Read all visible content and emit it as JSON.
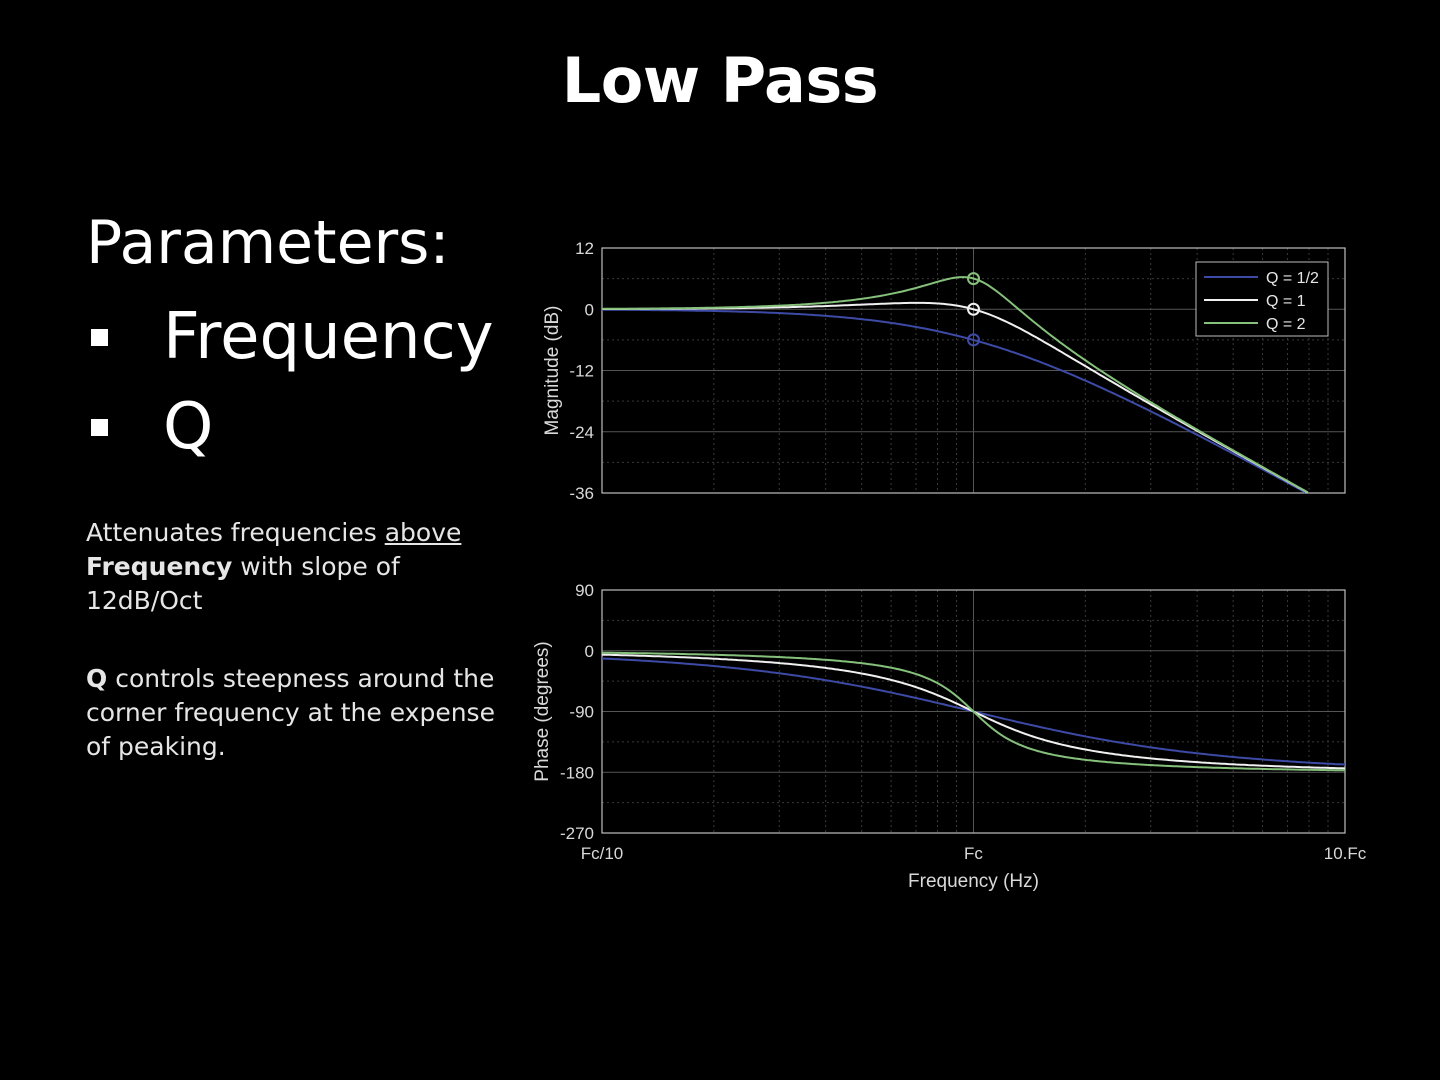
{
  "slide": {
    "title": "Low Pass",
    "params_heading": "Parameters:",
    "params": [
      "Frequency",
      "Q"
    ],
    "desc1": {
      "part1": "Attenuates frequencies ",
      "underlined": "above",
      "bold": "Frequency",
      "part2": " with slope of 12dB/Oct"
    },
    "desc2": {
      "bold": "Q",
      "text": " controls steepness around the corner frequency at the expense of peaking."
    }
  },
  "colors": {
    "q_half": "#3d4aa6",
    "q_one": "#f0f0f0",
    "q_two": "#86c17c"
  },
  "chart_data": [
    {
      "type": "line",
      "ylabel": "Magnitude (dB)",
      "ylim": [
        -36,
        12
      ],
      "yticks": [
        "12",
        "0",
        "-12",
        "-24",
        "-36"
      ],
      "xscale": "log",
      "x_range_fc_multiples": [
        0.1,
        10
      ],
      "grid": true,
      "legend": "top-right",
      "legend_entries": [
        "Q = 1/2",
        "Q = 1",
        "Q = 2"
      ],
      "series": [
        {
          "name": "Q = 1/2",
          "q": 0.5,
          "marker_at_fc_db": -6
        },
        {
          "name": "Q = 1",
          "q": 1,
          "marker_at_fc_db": 0
        },
        {
          "name": "Q = 2",
          "q": 2,
          "marker_at_fc_db": 6
        }
      ]
    },
    {
      "type": "line",
      "ylabel": "Phase (degrees)",
      "xlabel": "Frequency (Hz)",
      "ylim": [
        -270,
        90
      ],
      "yticks": [
        "90",
        "0",
        "-90",
        "-180",
        "-270"
      ],
      "xticks": [
        "Fc/10",
        "Fc",
        "10.Fc"
      ],
      "xscale": "log",
      "x_range_fc_multiples": [
        0.1,
        10
      ],
      "grid": true,
      "series": [
        {
          "name": "Q = 1/2",
          "q": 0.5
        },
        {
          "name": "Q = 1",
          "q": 1
        },
        {
          "name": "Q = 2",
          "q": 2
        }
      ]
    }
  ]
}
